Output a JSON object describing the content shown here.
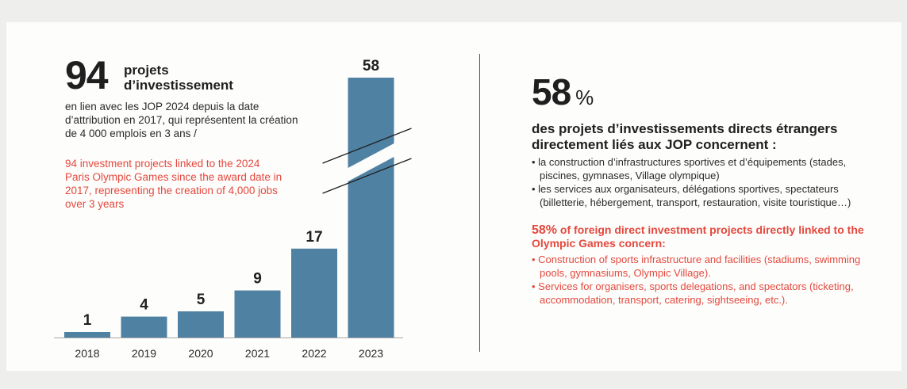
{
  "left": {
    "big_number": "94",
    "big_label": "projets\nd’investissement",
    "fr_desc": "en lien avec les JOP 2024 depuis la date d’attribution en 2017, qui représentent la création de 4 000 emplois en 3 ans /",
    "en_desc": "94 investment projects linked to the 2024 Paris Olympic Games since the award date in 2017, representing the creation of 4,000 jobs over 3 years"
  },
  "chart_data": {
    "type": "bar",
    "categories": [
      "2018",
      "2019",
      "2020",
      "2021",
      "2022",
      "2023"
    ],
    "values": [
      1,
      4,
      5,
      9,
      17,
      58
    ],
    "title": "",
    "xlabel": "",
    "ylabel": "",
    "axis_break": "2023",
    "grid": false,
    "legend": "none"
  },
  "right": {
    "pct_number": "58",
    "pct_symbol": "%",
    "fr_heading": "des projets d’investissements directs étrangers directement liés aux JOP concernent :",
    "fr_items": [
      "la construction d’infrastructures sportives et d’équipements (stades, piscines, gymnases, Village olympique)",
      "les services aux organisateurs, délégations sportives, spectateurs (billetterie, hébergement, transport, restauration, visite touristique…)"
    ],
    "en_pct": "58%",
    "en_heading": "of foreign direct investment projects directly linked to the Olympic Games concern:",
    "en_items": [
      "Construction of sports infrastructure and facilities (stadiums, swimming pools, gymnasiums, Olympic Village).",
      "Services for organisers, sports delegations, and spectators (ticketing, accommodation, transport, catering, sightseeing, etc.)."
    ]
  },
  "colors": {
    "bar": "#4f81a3",
    "accent_red": "#e4483e",
    "text": "#1f1f1f"
  }
}
